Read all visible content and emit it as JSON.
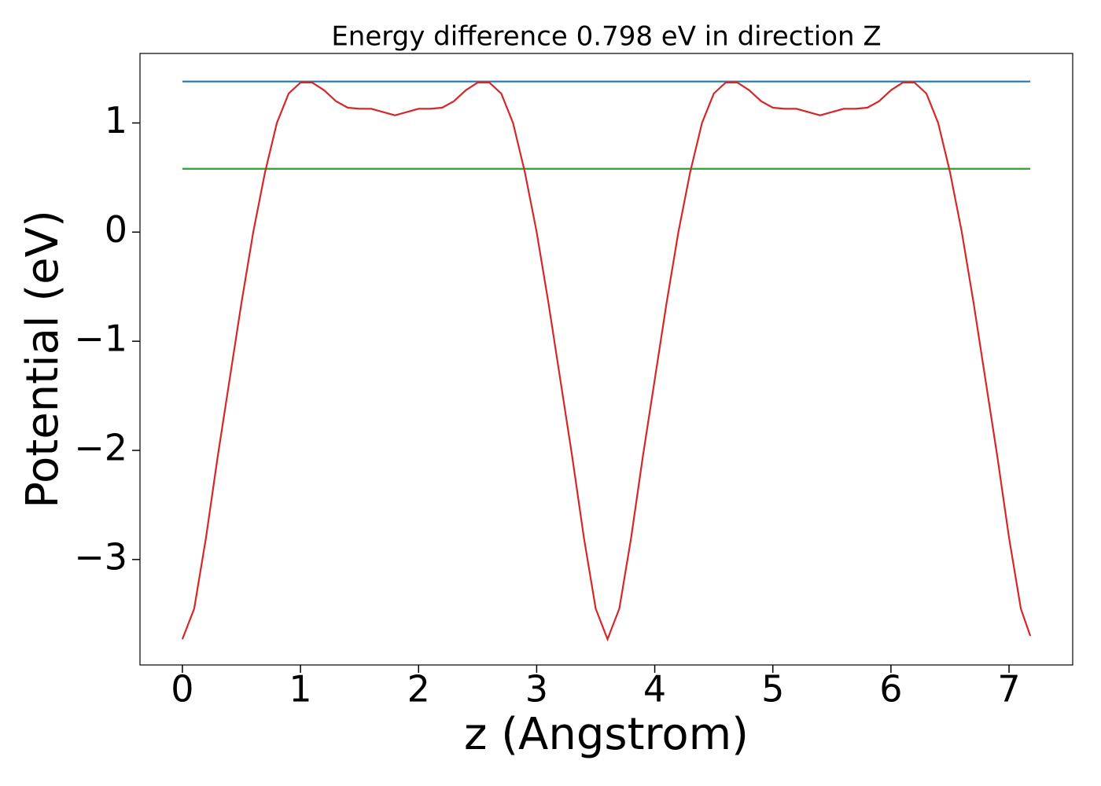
{
  "chart_data": {
    "type": "line",
    "title": "Energy difference 0.798 eV in direction Z",
    "xlabel": "z (Angstrom)",
    "ylabel": "Potential (eV)",
    "x": [
      0,
      0.1,
      0.2,
      0.3,
      0.4,
      0.5,
      0.6,
      0.7,
      0.8,
      0.9,
      1.0,
      1.1,
      1.2,
      1.3,
      1.4,
      1.5,
      1.6,
      1.7,
      1.8,
      1.9,
      2.0,
      2.1,
      2.2,
      2.3,
      2.4,
      2.5,
      2.6,
      2.7,
      2.8,
      2.9,
      3.0,
      3.1,
      3.2,
      3.3,
      3.4,
      3.5,
      3.6,
      3.7,
      3.8,
      3.9,
      4.0,
      4.1,
      4.2,
      4.3,
      4.4,
      4.5,
      4.6,
      4.7,
      4.8,
      4.9,
      5.0,
      5.1,
      5.2,
      5.3,
      5.4,
      5.5,
      5.6,
      5.7,
      5.8,
      5.9,
      6.0,
      6.1,
      6.2,
      6.3,
      6.4,
      6.5,
      6.6,
      6.7,
      6.8,
      6.9,
      7.0,
      7.1,
      7.18
    ],
    "series": [
      {
        "color": "#d62728",
        "values": [
          -3.73,
          -3.45,
          -2.8,
          -2.05,
          -1.35,
          -0.65,
          0.0,
          0.55,
          1.0,
          1.27,
          1.37,
          1.37,
          1.3,
          1.2,
          1.14,
          1.13,
          1.13,
          1.1,
          1.07,
          1.1,
          1.13,
          1.13,
          1.14,
          1.2,
          1.3,
          1.37,
          1.37,
          1.27,
          1.0,
          0.55,
          0.0,
          -0.65,
          -1.35,
          -2.05,
          -2.8,
          -3.45,
          -3.73,
          -3.45,
          -2.8,
          -2.05,
          -1.35,
          -0.65,
          0.0,
          0.55,
          1.0,
          1.27,
          1.37,
          1.37,
          1.3,
          1.2,
          1.14,
          1.13,
          1.13,
          1.1,
          1.07,
          1.1,
          1.13,
          1.13,
          1.14,
          1.2,
          1.3,
          1.37,
          1.37,
          1.27,
          1.0,
          0.55,
          0.0,
          -0.65,
          -1.35,
          -2.05,
          -2.8,
          -3.45,
          -3.7
        ]
      }
    ],
    "hlines": [
      {
        "color": "#1f77b4",
        "x": [
          0,
          7.18
        ],
        "values": [
          1.38,
          1.38
        ]
      },
      {
        "color": "#2ca02c",
        "x": [
          0,
          7.18
        ],
        "values": [
          0.58,
          0.58
        ]
      }
    ],
    "xlim": [
      -0.359,
      7.539
    ],
    "ylim": [
      -3.966,
      1.637
    ],
    "xticks": [
      0,
      1,
      2,
      3,
      4,
      5,
      6,
      7
    ],
    "yticks": [
      {
        "value": -3,
        "label": "−3"
      },
      {
        "value": -2,
        "label": "−2"
      },
      {
        "value": -1,
        "label": "−1"
      },
      0,
      1
    ],
    "grid": false
  }
}
